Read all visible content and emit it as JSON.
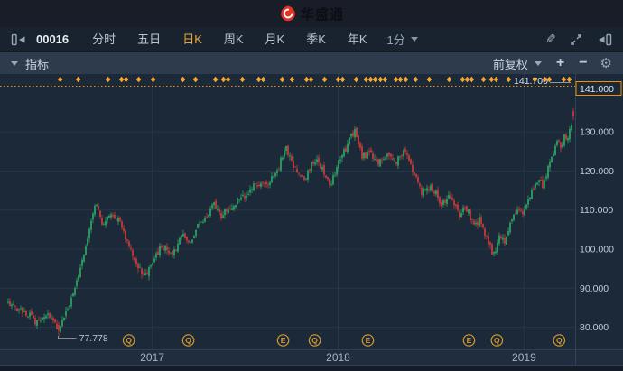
{
  "header": {
    "app_name": "华盛通"
  },
  "toolbar": {
    "symbol": "00016",
    "tabs": [
      {
        "id": "time-sharing",
        "label": "分时",
        "active": false
      },
      {
        "id": "five-day",
        "label": "五日",
        "active": false
      },
      {
        "id": "daily-k",
        "label": "日K",
        "active": true
      },
      {
        "id": "weekly-k",
        "label": "周K",
        "active": false
      },
      {
        "id": "monthly-k",
        "label": "月K",
        "active": false
      },
      {
        "id": "quarterly-k",
        "label": "季K",
        "active": false
      },
      {
        "id": "yearly-k",
        "label": "年K",
        "active": false
      }
    ],
    "interval_label": "1分",
    "icons": {
      "pencil": "✎",
      "gear": "⚙"
    }
  },
  "indicator_bar": {
    "indicator_label": "指标",
    "adjustment_label": "前复权",
    "zoom_in_label": "+",
    "zoom_out_label": "−"
  },
  "chart_data": {
    "type": "candlestick",
    "symbol": "00016",
    "colors": {
      "up": "#33b56b",
      "down": "#e2413c",
      "accent": "#f2a636",
      "high_line": "#ef9400",
      "grid": "#273748",
      "axis_text": "#c2ccd8"
    },
    "x_axis": {
      "tmin": 2016.22,
      "tmax": 2019.27,
      "year_ticks": [
        {
          "label": "2017",
          "t": 2017
        },
        {
          "label": "2018",
          "t": 2018
        },
        {
          "label": "2019",
          "t": 2019
        }
      ]
    },
    "y_axis": {
      "ticks": [
        {
          "label": "141.000",
          "value": 141,
          "boxed": true
        },
        {
          "label": "130.000",
          "value": 130,
          "boxed": false
        },
        {
          "label": "120.000",
          "value": 120,
          "boxed": false
        },
        {
          "label": "110.000",
          "value": 110,
          "boxed": false
        },
        {
          "label": "100.000",
          "value": 100,
          "boxed": false
        },
        {
          "label": "90.000",
          "value": 90,
          "boxed": false
        },
        {
          "label": "80.000",
          "value": 80,
          "boxed": false
        }
      ],
      "ylim": [
        74,
        143.5
      ]
    },
    "high_line": {
      "value": 141.7,
      "label": "141.700"
    },
    "low_point": {
      "value": 77.778,
      "label": "77.778",
      "t": 2016.495
    },
    "event_markers": [
      {
        "type": "Q",
        "t": 2016.874
      },
      {
        "type": "Q",
        "t": 2017.194
      },
      {
        "type": "E",
        "t": 2017.704
      },
      {
        "type": "Q",
        "t": 2017.874
      },
      {
        "type": "E",
        "t": 2018.16
      },
      {
        "type": "E",
        "t": 2018.704
      },
      {
        "type": "Q",
        "t": 2018.854
      },
      {
        "type": "Q",
        "t": 2019.189
      }
    ],
    "news_diamonds": [
      2016.505,
      2016.602,
      2016.762,
      2016.835,
      2016.859,
      2016.927,
      2017.005,
      2017.165,
      2017.233,
      2017.34,
      2017.383,
      2017.408,
      2017.485,
      2017.573,
      2017.597,
      2017.699,
      2017.752,
      2017.83,
      2017.854,
      2017.927,
      2018.0,
      2018.024,
      2018.097,
      2018.15,
      2018.175,
      2018.199,
      2018.228,
      2018.252,
      2018.311,
      2018.335,
      2018.364,
      2018.417,
      2018.49,
      2018.597,
      2018.67,
      2018.694,
      2018.718,
      2018.782,
      2018.825,
      2018.85,
      2018.917,
      2019.058,
      2019.112,
      2019.136,
      2019.214,
      2019.243
    ],
    "close_path": [
      [
        2016.243,
        86
      ],
      [
        2016.306,
        84
      ],
      [
        2016.379,
        81.5
      ],
      [
        2016.451,
        83
      ],
      [
        2016.495,
        79
      ],
      [
        2016.549,
        85
      ],
      [
        2016.597,
        92
      ],
      [
        2016.646,
        101
      ],
      [
        2016.675,
        108
      ],
      [
        2016.699,
        112
      ],
      [
        2016.733,
        106
      ],
      [
        2016.772,
        109
      ],
      [
        2016.82,
        107
      ],
      [
        2016.869,
        101
      ],
      [
        2016.917,
        96
      ],
      [
        2016.956,
        93.5
      ],
      [
        2016.99,
        95
      ],
      [
        2017.024,
        99
      ],
      [
        2017.063,
        101
      ],
      [
        2017.112,
        98.5
      ],
      [
        2017.16,
        104.5
      ],
      [
        2017.199,
        102
      ],
      [
        2017.248,
        106
      ],
      [
        2017.296,
        108.5
      ],
      [
        2017.33,
        112.5
      ],
      [
        2017.369,
        108.5
      ],
      [
        2017.413,
        110
      ],
      [
        2017.461,
        112.5
      ],
      [
        2017.51,
        114.5
      ],
      [
        2017.558,
        116.5
      ],
      [
        2017.607,
        116
      ],
      [
        2017.646,
        118
      ],
      [
        2017.68,
        120.5
      ],
      [
        2017.714,
        126
      ],
      [
        2017.743,
        123.5
      ],
      [
        2017.777,
        120
      ],
      [
        2017.816,
        118
      ],
      [
        2017.859,
        121.5
      ],
      [
        2017.893,
        123
      ],
      [
        2017.932,
        118
      ],
      [
        2017.961,
        116.5
      ],
      [
        2017.995,
        121
      ],
      [
        2018.034,
        125
      ],
      [
        2018.068,
        128.5
      ],
      [
        2018.092,
        130.3
      ],
      [
        2018.126,
        123.5
      ],
      [
        2018.175,
        125
      ],
      [
        2018.214,
        121.5
      ],
      [
        2018.262,
        124.5
      ],
      [
        2018.311,
        122
      ],
      [
        2018.354,
        125
      ],
      [
        2018.398,
        121
      ],
      [
        2018.451,
        114.5
      ],
      [
        2018.5,
        116.5
      ],
      [
        2018.553,
        111.5
      ],
      [
        2018.602,
        114
      ],
      [
        2018.65,
        109
      ],
      [
        2018.689,
        111
      ],
      [
        2018.728,
        106
      ],
      [
        2018.762,
        108
      ],
      [
        2018.796,
        103.5
      ],
      [
        2018.835,
        98.5
      ],
      [
        2018.869,
        103.5
      ],
      [
        2018.898,
        102
      ],
      [
        2018.932,
        107
      ],
      [
        2018.966,
        110.5
      ],
      [
        2018.99,
        109
      ],
      [
        2019.019,
        112
      ],
      [
        2019.049,
        115.5
      ],
      [
        2019.078,
        118
      ],
      [
        2019.102,
        116.5
      ],
      [
        2019.131,
        121
      ],
      [
        2019.155,
        124
      ],
      [
        2019.18,
        127.5
      ],
      [
        2019.199,
        125.5
      ],
      [
        2019.218,
        129.5
      ],
      [
        2019.238,
        128.5
      ],
      [
        2019.257,
        132.5
      ],
      [
        2019.272,
        134.5
      ]
    ],
    "last_candle": {
      "open": 135.3,
      "close": 134.1,
      "high": 136.1,
      "low": 133.0
    }
  }
}
